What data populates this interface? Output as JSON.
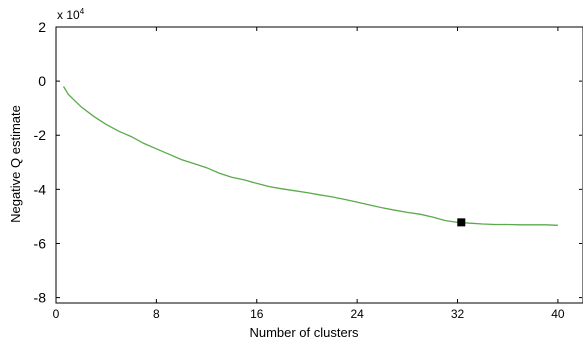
{
  "chart_data": {
    "type": "line",
    "xlabel": "Number of clusters",
    "ylabel": "Negative Q estimate",
    "y_multiplier_label": "x 10",
    "y_multiplier_exponent": "4",
    "xlim": [
      0,
      42
    ],
    "ylim": [
      -8.2,
      2
    ],
    "x_ticks": [
      0,
      8,
      16,
      24,
      32,
      40
    ],
    "x_tick_labels": [
      "0",
      "8",
      "16",
      "24",
      "32",
      "40"
    ],
    "y_ticks": [
      2,
      0,
      -2,
      -4,
      -6,
      -8
    ],
    "y_tick_labels": [
      "2",
      "0",
      "-2",
      "-4",
      "-6",
      "-8"
    ],
    "grid": false,
    "series": [
      {
        "color": "#5aaa4c",
        "x": [
          0.6,
          1,
          2,
          3,
          4,
          5,
          6,
          7,
          8,
          9,
          10,
          11,
          12,
          13,
          14,
          15,
          16,
          17,
          18,
          19,
          20,
          21,
          22,
          23,
          24,
          25,
          26,
          27,
          28,
          29,
          30,
          31,
          32,
          33,
          34,
          35,
          36,
          37,
          38,
          39,
          40
        ],
        "y": [
          -0.2,
          -0.5,
          -0.95,
          -1.3,
          -1.6,
          -1.85,
          -2.05,
          -2.3,
          -2.5,
          -2.7,
          -2.9,
          -3.05,
          -3.2,
          -3.4,
          -3.55,
          -3.65,
          -3.78,
          -3.9,
          -3.98,
          -4.05,
          -4.12,
          -4.2,
          -4.28,
          -4.37,
          -4.47,
          -4.58,
          -4.68,
          -4.77,
          -4.85,
          -4.92,
          -5.02,
          -5.15,
          -5.22,
          -5.25,
          -5.28,
          -5.3,
          -5.3,
          -5.31,
          -5.31,
          -5.31,
          -5.33
        ]
      }
    ],
    "marker": {
      "x": 32.3,
      "y": -5.22,
      "color": "#000000",
      "shape": "square"
    }
  }
}
